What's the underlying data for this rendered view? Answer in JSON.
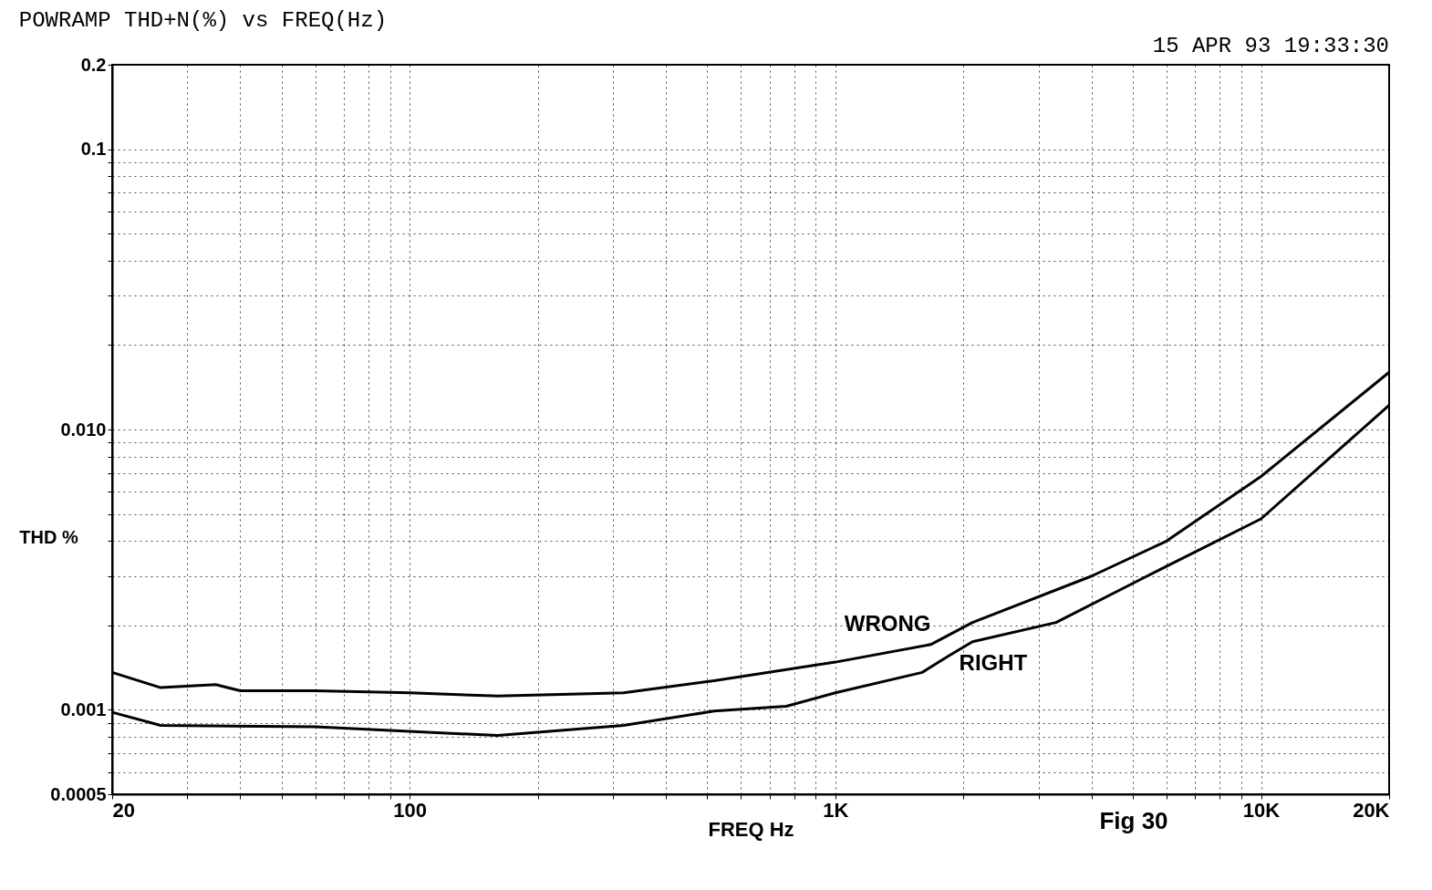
{
  "chart_data": {
    "type": "line",
    "title": "POWRAMP THD+N(%) vs FREQ(Hz)",
    "xlabel": "FREQ Hz",
    "ylabel": "THD %",
    "annotations": [
      "15 APR 93 19:33:30",
      "Fig 30"
    ],
    "log": "xy",
    "grid": true,
    "legend": false,
    "marker": "none",
    "line_style": "solid",
    "xlim": [
      20,
      20000
    ],
    "ylim": [
      0.0005,
      0.2
    ],
    "xticks": [
      20,
      {
        "value": 30,
        "label": null
      },
      {
        "value": 40,
        "label": null
      },
      {
        "value": 50,
        "label": null
      },
      {
        "value": 60,
        "label": null
      },
      {
        "value": 70,
        "label": null
      },
      {
        "value": 80,
        "label": null
      },
      {
        "value": 90,
        "label": null
      },
      100,
      {
        "value": 200,
        "label": null
      },
      {
        "value": 300,
        "label": null
      },
      {
        "value": 400,
        "label": null
      },
      {
        "value": 500,
        "label": null
      },
      {
        "value": 600,
        "label": null
      },
      {
        "value": 700,
        "label": null
      },
      {
        "value": 800,
        "label": null
      },
      {
        "value": 900,
        "label": null
      },
      {
        "value": 1000,
        "label": "1K"
      },
      {
        "value": 2000,
        "label": null
      },
      {
        "value": 3000,
        "label": null
      },
      {
        "value": 4000,
        "label": null
      },
      {
        "value": 5000,
        "label": null
      },
      {
        "value": 6000,
        "label": null
      },
      {
        "value": 7000,
        "label": null
      },
      {
        "value": 8000,
        "label": null
      },
      {
        "value": 9000,
        "label": null
      },
      {
        "value": 10000,
        "label": "10K"
      },
      {
        "value": 20000,
        "label": "20K"
      }
    ],
    "yticks": [
      0.0005,
      {
        "value": 0.0006,
        "label": null
      },
      {
        "value": 0.0007,
        "label": null
      },
      {
        "value": 0.0008,
        "label": null
      },
      {
        "value": 0.0009,
        "label": null
      },
      0.001,
      {
        "value": 0.002,
        "label": null
      },
      {
        "value": 0.003,
        "label": null
      },
      {
        "value": 0.004,
        "label": null
      },
      {
        "value": 0.005,
        "label": null
      },
      {
        "value": 0.006,
        "label": null
      },
      {
        "value": 0.007,
        "label": null
      },
      {
        "value": 0.008,
        "label": null
      },
      {
        "value": 0.009,
        "label": null
      },
      {
        "value": 0.01,
        "label": "0.010"
      },
      {
        "value": 0.02,
        "label": null
      },
      {
        "value": 0.03,
        "label": null
      },
      {
        "value": 0.04,
        "label": null
      },
      {
        "value": 0.05,
        "label": null
      },
      {
        "value": 0.06,
        "label": null
      },
      {
        "value": 0.07,
        "label": null
      },
      {
        "value": 0.08,
        "label": null
      },
      {
        "value": 0.09,
        "label": null
      },
      0.1,
      0.2
    ],
    "series": [
      {
        "name": "WRONG",
        "color": "#000000",
        "x": [
          20,
          26,
          35,
          40,
          60,
          100,
          161,
          318,
          519,
          1000,
          1675,
          2100,
          4000,
          6000,
          10000,
          20000
        ],
        "values": [
          0.00136,
          0.0012,
          0.00123,
          0.00117,
          0.00117,
          0.00115,
          0.00112,
          0.00115,
          0.00127,
          0.00148,
          0.00171,
          0.00205,
          0.003,
          0.004,
          0.0068,
          0.016
        ]
      },
      {
        "name": "RIGHT",
        "color": "#000000",
        "x": [
          20,
          26,
          60,
          161,
          318,
          519,
          767,
          1000,
          1600,
          1850,
          2100,
          3300,
          5400,
          10000,
          20000
        ],
        "values": [
          0.00098,
          0.00088,
          0.00087,
          0.00081,
          0.00088,
          0.00099,
          0.00103,
          0.00115,
          0.00136,
          0.00156,
          0.00175,
          0.00205,
          0.003,
          0.0048,
          0.0122
        ]
      }
    ]
  }
}
